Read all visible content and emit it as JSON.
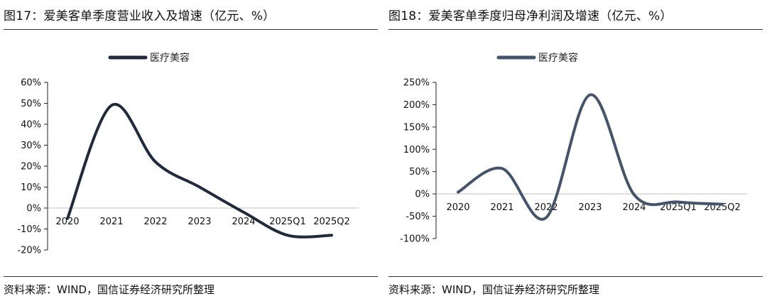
{
  "chart_data": [
    {
      "type": "line",
      "title": "图17：爱美客单季度营业收入及增速（亿元、%）",
      "source": "资料来源：WIND，国信证券经济研究所整理",
      "categories": [
        "2020",
        "2021",
        "2022",
        "2023",
        "2024",
        "2025Q1",
        "2025Q2"
      ],
      "series": [
        {
          "name": "医疗美容",
          "values": [
            -5,
            49,
            22,
            10,
            -2,
            -13,
            -13
          ]
        }
      ],
      "y_ticks": [
        "60%",
        "50%",
        "40%",
        "30%",
        "20%",
        "10%",
        "0%",
        "-10%",
        "-20%"
      ],
      "ylim": [
        -20,
        60
      ],
      "legend_position": "top-center",
      "line_color": "#1f2a3c"
    },
    {
      "type": "line",
      "title": "图18：爱美客单季度归母净利润及增速（亿元、%）",
      "source": "资料来源：WIND，国信证券经济研究所整理",
      "categories": [
        "2020",
        "2021",
        "2022",
        "2023",
        "2024",
        "2025Q1",
        "2025Q2"
      ],
      "series": [
        {
          "name": "医疗美容",
          "values": [
            4,
            57,
            -53,
            222,
            -2,
            -18,
            -23
          ]
        }
      ],
      "y_ticks": [
        "250%",
        "200%",
        "150%",
        "100%",
        "50%",
        "0%",
        "-50%",
        "-100%"
      ],
      "ylim": [
        -100,
        250
      ],
      "legend_position": "top-center",
      "line_color": "#44546a"
    }
  ]
}
